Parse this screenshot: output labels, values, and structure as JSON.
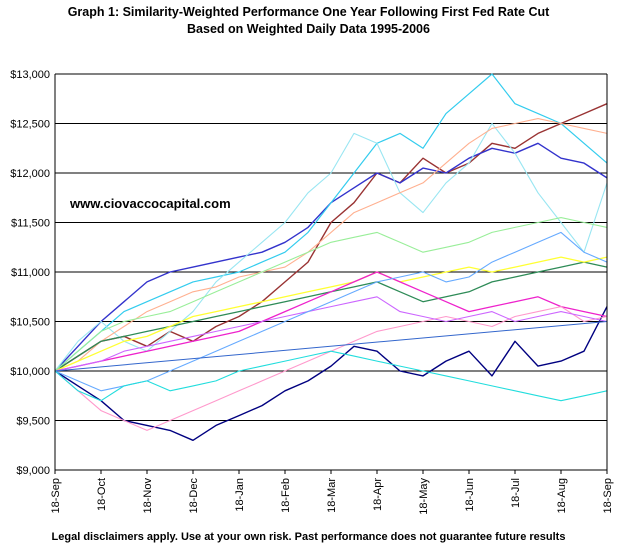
{
  "chart_data": {
    "type": "line",
    "title": "Graph 1: Similarity-Weighted Performance One Year Following First Fed Rate Cut",
    "subtitle": "Based on Weighted Daily Data 1995-2006",
    "annotation": "www.ciovaccocapital.com",
    "footer": "Legal disclaimers apply. Use at your own risk. Past performance does not guarantee future results",
    "ylim": [
      9000,
      13000
    ],
    "yticks": [
      9000,
      9500,
      10000,
      10500,
      11000,
      11500,
      12000,
      12500,
      13000
    ],
    "ytick_labels": [
      "$9,000",
      "$9,500",
      "$10,000",
      "$10,500",
      "$11,000",
      "$11,500",
      "$12,000",
      "$12,500",
      "$13,000"
    ],
    "xlim": [
      0,
      12
    ],
    "xtick_labels": [
      "18-Sep",
      "18-Oct",
      "18-Nov",
      "18-Dec",
      "18-Jan",
      "18-Feb",
      "18-Mar",
      "18-Apr",
      "18-May",
      "18-Jun",
      "18-Jul",
      "18-Aug",
      "18-Sep"
    ],
    "grid": true,
    "series": [
      {
        "name": "brown",
        "color": "#993333",
        "width": 1.4,
        "x": [
          0,
          0.5,
          1,
          1.5,
          2,
          2.5,
          3,
          3.5,
          4,
          4.5,
          5,
          5.5,
          6,
          6.5,
          7,
          7.5,
          8,
          8.5,
          9,
          9.5,
          10,
          10.5,
          11,
          11.5,
          12
        ],
        "values": [
          10000,
          10150,
          10300,
          10350,
          10250,
          10400,
          10300,
          10450,
          10550,
          10700,
          10900,
          11100,
          11500,
          11700,
          12000,
          11900,
          12150,
          12000,
          12100,
          12300,
          12250,
          12400,
          12500,
          12600,
          12700
        ]
      },
      {
        "name": "blue",
        "color": "#3333cc",
        "width": 1.4,
        "x": [
          0,
          0.5,
          1,
          1.5,
          2,
          2.5,
          3,
          3.5,
          4,
          4.5,
          5,
          5.5,
          6,
          6.5,
          7,
          7.5,
          8,
          8.5,
          9,
          9.5,
          10,
          10.5,
          11,
          11.5,
          12
        ],
        "values": [
          10000,
          10250,
          10500,
          10700,
          10900,
          11000,
          11050,
          11100,
          11150,
          11200,
          11300,
          11450,
          11700,
          11850,
          12000,
          11900,
          12050,
          12000,
          12150,
          12250,
          12200,
          12300,
          12150,
          12100,
          11950
        ]
      },
      {
        "name": "navy",
        "color": "#000080",
        "width": 1.4,
        "x": [
          0,
          0.5,
          1,
          1.5,
          2,
          2.5,
          3,
          3.5,
          4,
          4.5,
          5,
          5.5,
          6,
          6.5,
          7,
          7.5,
          8,
          8.5,
          9,
          9.5,
          10,
          10.5,
          11,
          11.5,
          12
        ],
        "values": [
          10000,
          9850,
          9700,
          9500,
          9450,
          9400,
          9300,
          9450,
          9550,
          9650,
          9800,
          9900,
          10050,
          10250,
          10200,
          10000,
          9950,
          10100,
          10200,
          9950,
          10300,
          10050,
          10100,
          10200,
          10650
        ]
      },
      {
        "name": "cyan",
        "color": "#33ccee",
        "width": 1.2,
        "x": [
          0,
          0.5,
          1,
          1.5,
          2,
          2.5,
          3,
          3.5,
          4,
          4.5,
          5,
          5.5,
          6,
          6.5,
          7,
          7.5,
          8,
          8.5,
          9,
          9.5,
          10,
          10.5,
          11,
          11.5,
          12
        ],
        "values": [
          10000,
          10200,
          10400,
          10600,
          10700,
          10800,
          10900,
          10950,
          11000,
          11100,
          11200,
          11400,
          11700,
          12000,
          12300,
          12400,
          12250,
          12600,
          12800,
          13000,
          12700,
          12600,
          12500,
          12300,
          12100
        ]
      },
      {
        "name": "light-cyan",
        "color": "#99e6f2",
        "width": 1.1,
        "x": [
          0,
          0.5,
          1,
          1.5,
          2,
          2.5,
          3,
          3.5,
          4,
          4.5,
          5,
          5.5,
          6,
          6.5,
          7,
          7.5,
          8,
          8.5,
          9,
          9.5,
          10,
          10.5,
          11,
          11.5,
          12
        ],
        "values": [
          10000,
          10300,
          10500,
          10300,
          10200,
          10400,
          10600,
          10900,
          11100,
          11300,
          11500,
          11800,
          12000,
          12400,
          12300,
          11800,
          11600,
          11900,
          12100,
          12500,
          12200,
          11800,
          11500,
          11200,
          11900
        ]
      },
      {
        "name": "peach",
        "color": "#ffb090",
        "width": 1.1,
        "x": [
          0,
          0.5,
          1,
          1.5,
          2,
          2.5,
          3,
          3.5,
          4,
          4.5,
          5,
          5.5,
          6,
          6.5,
          7,
          7.5,
          8,
          8.5,
          9,
          9.5,
          10,
          10.5,
          11,
          11.5,
          12
        ],
        "values": [
          10000,
          10100,
          10300,
          10450,
          10600,
          10700,
          10800,
          10850,
          10950,
          11000,
          11050,
          11200,
          11400,
          11600,
          11700,
          11800,
          11900,
          12100,
          12300,
          12450,
          12500,
          12550,
          12500,
          12450,
          12400
        ]
      },
      {
        "name": "teal",
        "color": "#2e8b57",
        "width": 1.3,
        "x": [
          0,
          0.5,
          1,
          1.5,
          2,
          2.5,
          3,
          3.5,
          4,
          4.5,
          5,
          5.5,
          6,
          6.5,
          7,
          7.5,
          8,
          8.5,
          9,
          9.5,
          10,
          10.5,
          11,
          11.5,
          12
        ],
        "values": [
          10000,
          10150,
          10300,
          10350,
          10400,
          10450,
          10500,
          10550,
          10600,
          10650,
          10700,
          10750,
          10800,
          10850,
          10900,
          10800,
          10700,
          10750,
          10800,
          10900,
          10950,
          11000,
          11050,
          11100,
          11050
        ]
      },
      {
        "name": "yellow",
        "color": "#ffff33",
        "width": 1.3,
        "x": [
          0,
          0.5,
          1,
          1.5,
          2,
          2.5,
          3,
          3.5,
          4,
          4.5,
          5,
          5.5,
          6,
          6.5,
          7,
          7.5,
          8,
          8.5,
          9,
          9.5,
          10,
          10.5,
          11,
          11.5,
          12
        ],
        "values": [
          10000,
          10100,
          10200,
          10300,
          10350,
          10450,
          10550,
          10600,
          10650,
          10700,
          10750,
          10800,
          10850,
          10900,
          11000,
          10900,
          10950,
          11000,
          11050,
          11000,
          11050,
          11100,
          11150,
          11100,
          11150
        ]
      },
      {
        "name": "magenta",
        "color": "#ee22cc",
        "width": 1.3,
        "x": [
          0,
          0.5,
          1,
          1.5,
          2,
          2.5,
          3,
          3.5,
          4,
          4.5,
          5,
          5.5,
          6,
          6.5,
          7,
          7.5,
          8,
          8.5,
          9,
          9.5,
          10,
          10.5,
          11,
          11.5,
          12
        ],
        "values": [
          10000,
          10050,
          10100,
          10150,
          10200,
          10250,
          10300,
          10350,
          10400,
          10500,
          10600,
          10700,
          10800,
          10900,
          11000,
          10900,
          10800,
          10700,
          10600,
          10650,
          10700,
          10750,
          10650,
          10600,
          10550
        ]
      },
      {
        "name": "pink",
        "color": "#ff99cc",
        "width": 1.1,
        "x": [
          0,
          0.5,
          1,
          1.5,
          2,
          2.5,
          3,
          3.5,
          4,
          4.5,
          5,
          5.5,
          6,
          6.5,
          7,
          7.5,
          8,
          8.5,
          9,
          9.5,
          10,
          10.5,
          11,
          11.5,
          12
        ],
        "values": [
          10000,
          9800,
          9600,
          9500,
          9400,
          9500,
          9600,
          9700,
          9800,
          9900,
          10000,
          10100,
          10200,
          10300,
          10400,
          10450,
          10500,
          10550,
          10500,
          10450,
          10550,
          10600,
          10650,
          10500,
          10550
        ]
      },
      {
        "name": "orchid",
        "color": "#cc66ff",
        "width": 1.1,
        "x": [
          0,
          0.5,
          1,
          1.5,
          2,
          2.5,
          3,
          3.5,
          4,
          4.5,
          5,
          5.5,
          6,
          6.5,
          7,
          7.5,
          8,
          8.5,
          9,
          9.5,
          10,
          10.5,
          11,
          11.5,
          12
        ],
        "values": [
          10000,
          10050,
          10100,
          10200,
          10250,
          10300,
          10350,
          10400,
          10450,
          10500,
          10550,
          10600,
          10650,
          10700,
          10750,
          10600,
          10550,
          10500,
          10550,
          10600,
          10500,
          10550,
          10600,
          10550,
          10500
        ]
      },
      {
        "name": "sky",
        "color": "#66aaff",
        "width": 1.1,
        "x": [
          0,
          0.5,
          1,
          1.5,
          2,
          2.5,
          3,
          3.5,
          4,
          4.5,
          5,
          5.5,
          6,
          6.5,
          7,
          7.5,
          8,
          8.5,
          9,
          9.5,
          10,
          10.5,
          11,
          11.5,
          12
        ],
        "values": [
          10000,
          9900,
          9800,
          9850,
          9900,
          10000,
          10100,
          10200,
          10300,
          10400,
          10500,
          10600,
          10700,
          10800,
          10900,
          10950,
          11000,
          10900,
          10950,
          11100,
          11200,
          11300,
          11400,
          11200,
          11100
        ]
      },
      {
        "name": "light-green",
        "color": "#99ee99",
        "width": 1.1,
        "x": [
          0,
          0.5,
          1,
          1.5,
          2,
          2.5,
          3,
          3.5,
          4,
          4.5,
          5,
          5.5,
          6,
          6.5,
          7,
          7.5,
          8,
          8.5,
          9,
          9.5,
          10,
          10.5,
          11,
          11.5,
          12
        ],
        "values": [
          10000,
          10200,
          10400,
          10500,
          10550,
          10600,
          10700,
          10800,
          10900,
          11000,
          11100,
          11200,
          11300,
          11350,
          11400,
          11300,
          11200,
          11250,
          11300,
          11400,
          11450,
          11500,
          11550,
          11500,
          11450
        ]
      },
      {
        "name": "aqua",
        "color": "#22dddd",
        "width": 1.1,
        "x": [
          0,
          0.5,
          1,
          1.5,
          2,
          2.5,
          3,
          3.5,
          4,
          4.5,
          5,
          5.5,
          6,
          6.5,
          7,
          7.5,
          8,
          8.5,
          9,
          9.5,
          10,
          10.5,
          11,
          11.5,
          12
        ],
        "values": [
          10000,
          9800,
          9700,
          9850,
          9900,
          9800,
          9850,
          9900,
          10000,
          10050,
          10100,
          10150,
          10200,
          10150,
          10100,
          10050,
          10000,
          9950,
          9900,
          9850,
          9800,
          9750,
          9700,
          9750,
          9800
        ]
      },
      {
        "name": "trend",
        "color": "#3366cc",
        "width": 1.0,
        "x": [
          0,
          12
        ],
        "values": [
          10000,
          10500
        ]
      }
    ]
  }
}
